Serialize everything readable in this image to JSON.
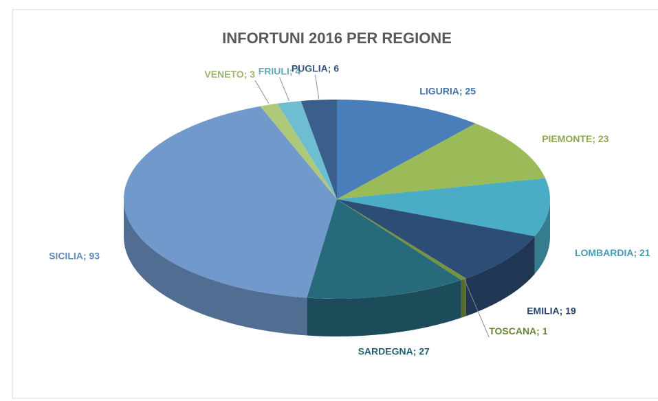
{
  "chart_data": {
    "type": "pie3d",
    "title": "INFORTUNI 2016 PER REGIONE",
    "categories": [
      "LIGURIA",
      "PIEMONTE",
      "LOMBARDIA",
      "EMILIA",
      "TOSCANA",
      "SARDEGNA",
      "SICILIA",
      "VENETO",
      "FRIULI",
      "PUGLIA"
    ],
    "values": [
      25,
      23,
      21,
      19,
      1,
      27,
      93,
      3,
      4,
      6
    ],
    "label_separator": "; ",
    "colors": [
      "#4a7ebb",
      "#9bbb59",
      "#4bacc6",
      "#2c4d75",
      "#77933c",
      "#276a7c",
      "#7199cb",
      "#afc97a",
      "#6fbdd1",
      "#3a5f8c"
    ]
  }
}
